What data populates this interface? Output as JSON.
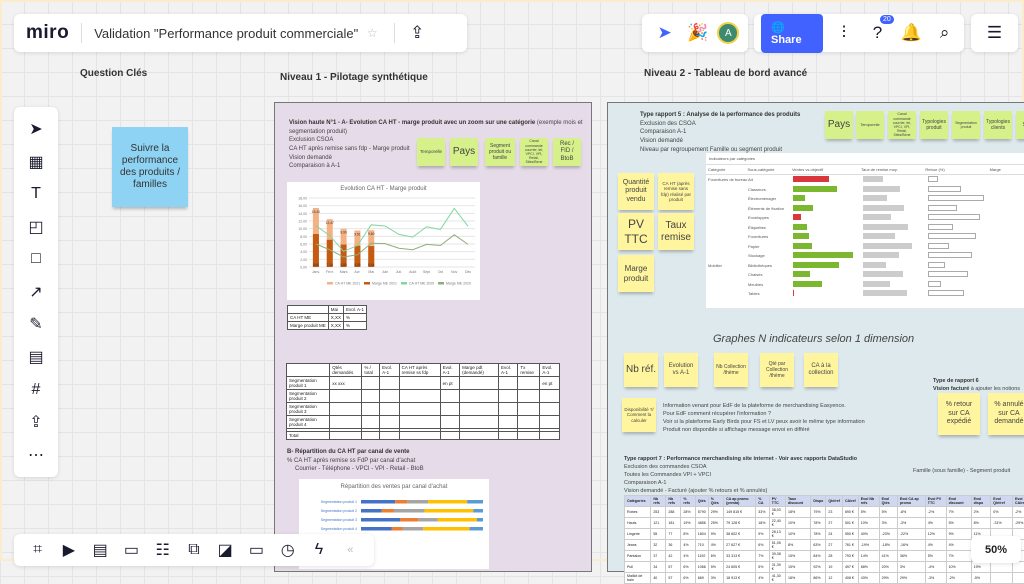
{
  "topbar": {
    "logo": "miro",
    "board_title": "Validation \"Performance produit commerciale\"",
    "star_icon": "star-icon",
    "export_icon": "upload-icon"
  },
  "collab": {
    "avatar_initial": "A",
    "share_label": "Share",
    "notification_count": "20"
  },
  "colors": {
    "share": "#4262ff",
    "frame1": "#e6dbe8",
    "frame2": "#dde9ec",
    "sticky_green": "#d6f08a",
    "sticky_yellow": "#fff59e",
    "sticky_blue": "#8fd3f4"
  },
  "sections": {
    "q": "Question Clés",
    "n1": "Niveau 1 - Pilotage synthétique",
    "n2": "Niveau 2 - Tableau de bord avancé"
  },
  "question_sticky": "Suivre la performance des produits / familles",
  "left_tools": [
    "select",
    "template",
    "text",
    "sticky-note",
    "shape",
    "arrow",
    "pen",
    "comment",
    "frame",
    "upload",
    "more"
  ],
  "bottom_tools": [
    "frames",
    "presentation",
    "comments",
    "card",
    "list",
    "share-screen",
    "embed",
    "video",
    "timer",
    "lightning"
  ],
  "n1": {
    "title": "Vision haute N°1 - A- Evolution CA HT - marge produit avec un zoom sur une catégorie",
    "title_suffix": "(exemple mois et segmentation produit)",
    "lines": [
      "Exclusion CSOA",
      "CA HT après remise sans fdp - Marge produit",
      "Vision demandé",
      "Comparaison à A-1"
    ],
    "stickies": [
      "Temporelle",
      "Pays",
      "Segment produit ou famille",
      "Canal commande courrier, tel, VPCI, VPI, Retail, Sites/Bene",
      "Rec / FID / BtoB"
    ],
    "small_table": {
      "header": [
        "",
        "Mai",
        "Evol. A-1"
      ],
      "rows": [
        [
          "CA HT ME",
          "X,XX",
          "%"
        ],
        [
          "Marge produit ME",
          "X,XX",
          "%"
        ]
      ]
    },
    "big_table": {
      "header": [
        "",
        "Qtés demandés",
        "% / total",
        "Evol. A-1",
        "CA HT après remise ss fdp",
        "Evol. A-1",
        "Marge pdt (demandé)",
        "Evol. A-1",
        "Tx remise",
        "Evol. A-1"
      ],
      "rows": [
        [
          "Segmentation produit 1",
          "xx xxx",
          "",
          "",
          "",
          "en pt",
          "",
          "",
          "",
          "en pt"
        ],
        [
          "Segmentation produit 2",
          "",
          "",
          "",
          "",
          "",
          "",
          "",
          "",
          ""
        ],
        [
          "Segmentation produit 3",
          "",
          "",
          "",
          "",
          "",
          "",
          "",
          "",
          ""
        ],
        [
          "Segmentation produit 4",
          "",
          "",
          "",
          "",
          "",
          "",
          "",
          "",
          ""
        ],
        [
          "",
          "",
          "",
          "",
          "",
          "",
          "",
          "",
          "",
          ""
        ],
        [
          "Total",
          "",
          "",
          "",
          "",
          "",
          "",
          "",
          "",
          ""
        ]
      ]
    },
    "b_title": "B- Répartition du CA HT par canal de vente",
    "b_lines": [
      "% CA HT après remise ss FdP par canal d'achat",
      "Courrier - Téléphone - VPCI - VPI - Retail - BtoB"
    ],
    "stack_chart": {
      "title": "Répartition des ventes par canal d'achat",
      "categories": [
        "Segmentation produit 1",
        "Segmentation produit 2",
        "Segmentation produit 3",
        "Segmentation produit 4"
      ],
      "colors": [
        "#4472c4",
        "#ed7d31",
        "#a5a5a5",
        "#ffc000",
        "#5b9bd5"
      ],
      "values": [
        [
          28,
          10,
          17,
          32,
          13
        ],
        [
          17,
          10,
          25,
          40,
          8
        ],
        [
          32,
          15,
          16,
          32,
          5
        ],
        [
          25,
          9,
          17,
          38,
          11
        ]
      ]
    }
  },
  "chart_data": {
    "type": "bar+line",
    "title": "Evolution CA HT - Marge produit",
    "categories": [
      "Janv.",
      "Févr.",
      "Mars",
      "Avr.",
      "Mai",
      "Juin",
      "Juil.",
      "Août",
      "Sept",
      "Oct",
      "Nov",
      "Déc"
    ],
    "ylim": [
      0,
      18
    ],
    "yticks": [
      "0,00",
      "2,00",
      "4,00",
      "6,00",
      "8,00",
      "10,00",
      "12,00",
      "14,00",
      "16,00",
      "18,00"
    ],
    "series": [
      {
        "name": "CA HT ME 2021",
        "type": "bar",
        "color": "#f4b183",
        "values": [
          15.4,
          12.47,
          9.99,
          9.51,
          9.6,
          null,
          null,
          null,
          null,
          null,
          null,
          null
        ],
        "labels": [
          "15,40",
          "12,47",
          "9,99",
          "9,51",
          "9,60"
        ]
      },
      {
        "name": "Marge ME 2021",
        "type": "bar",
        "color": "#c55a11",
        "values": [
          8.6,
          7.1,
          5.85,
          5.55,
          5.44,
          null,
          null,
          null,
          null,
          null,
          null,
          null
        ],
        "labels": [
          "8,60",
          "7,10",
          "5,85",
          "5,55",
          "5,44"
        ]
      },
      {
        "name": "CA HT ME 2020",
        "type": "line",
        "color": "#7fd6a0",
        "values": [
          10.8,
          8.2,
          4.1,
          5.6,
          11.0,
          10.7,
          8.5,
          7.8,
          10.5,
          9.8,
          15.3,
          10.6
        ]
      },
      {
        "name": "Marge ME 2020",
        "type": "line",
        "color": "#8fae7c",
        "values": [
          6.0,
          4.5,
          2.6,
          3.2,
          6.2,
          6.1,
          4.9,
          4.5,
          5.9,
          5.6,
          8.4,
          5.9
        ]
      }
    ],
    "legend": [
      "CA HT ME 2021",
      "Marge ME 2021",
      "CA HT ME 2020",
      "Marge ME 2020"
    ],
    "legend_position": "bottom"
  },
  "n2": {
    "r5_title": "Type rapport 5 : Analyse de la performance des produits",
    "r5_lines": [
      "Exclusion des CSOA",
      "Comparaison A-1",
      "Vision demandé",
      "Niveau par regroupement Famille ou segment produit"
    ],
    "r5_stickies": [
      "Pays",
      "Temporelle",
      "Canal commande courrier, tel, VPCI, VPI, Retail, Sites/Bene",
      "Typologies produit",
      "Segmentation produit",
      "Typologies clients",
      "Seg cli"
    ],
    "left_stickies": [
      "Quantité produit vendu",
      "CA HT (après remise sans fdp) réalisé par produit",
      "PV TTC",
      "Taux remise",
      "Marge produit"
    ],
    "dash": {
      "title": "Indicateurs par catégories",
      "cols": [
        "Catégorie",
        "Sous-catégorie",
        "Ventes vs objectif",
        "Taux de remise moy.",
        "Retour (%)",
        "Marge"
      ],
      "rows": [
        [
          "Fournitures de bureau",
          "Art",
          78,
          "red"
        ],
        [
          "",
          "Classeurs",
          95,
          "green"
        ],
        [
          "",
          "Électroménager",
          26,
          "green"
        ],
        [
          "",
          "Éléments de fixation",
          44,
          "green"
        ],
        [
          "",
          "Enveloppes",
          18,
          "red"
        ],
        [
          "",
          "Étiquettes",
          30,
          "green"
        ],
        [
          "",
          "Fournitures",
          35,
          "green"
        ],
        [
          "",
          "Papier",
          40,
          "green"
        ],
        [
          "",
          "Stockage",
          129,
          "green"
        ],
        [
          "Mobilier",
          "Bibliothèques",
          99,
          "green"
        ],
        [
          "",
          "Chaises",
          37,
          "green"
        ],
        [
          "",
          "Meubles",
          63,
          "green"
        ],
        [
          "",
          "Tables",
          3,
          "red"
        ]
      ]
    },
    "graphes_title": "Graphes N indicateurs selon 1 dimension",
    "g_stickies": [
      "Nb réf.",
      "Evolution vs A-1",
      "Nb Collection /thème",
      "Qté par Collection /thème",
      "CA à la collection"
    ],
    "dispo_sticky": "Disponibilité ?/ Comment la calculer",
    "dispo_lines": [
      "Information venant pour EdF de la plateforme de merchandising Easyence.",
      "Pour EdF comment récupérer l'information ?",
      "Voir si la plateforme Early Birds pour FS et LV peux avoir le même type information",
      "Produit non disponible si affichage message envoi en différé"
    ],
    "r6_title": "Type de rapport 6",
    "r6_sub_bold": "Vision facturé",
    "r6_sub": " à ajouter les notions",
    "r6_stickies": [
      "% retour sur CA expédié",
      "% annulé sur CA demandé"
    ],
    "r7_title": "Type rapport 7 : Performance merchandising site internet",
    "r7_suffix": "- Voir avec rapports DataStudio",
    "r7_lines": [
      "Exclusion des commandes CSOA",
      "Toutes les Commandes VPI + VPCI",
      "Comparaison A-1",
      "Vision demandé - Facturé (ajouter % retours et % annulés)"
    ],
    "r7_right": "Famille (sous famille) - Segment produit",
    "r7_table": {
      "header": [
        "Catégories",
        "Nb refs",
        "Nb refs",
        "% refs",
        "Qtés",
        "% Qtés",
        "CA ap promo (presta)",
        "% CA",
        "PV TTC",
        "Taux discount",
        "Dispo",
        "Qté/ref",
        "CA/ref",
        "Evol Nb refs",
        "Evol Qtés",
        "Evol CA ap promo",
        "Evol PV TTC",
        "Evol discount",
        "Evol dispo",
        "Evol Qté/ref",
        "Evol CA/ref"
      ],
      "rows": [
        [
          "Robes",
          "253",
          "288",
          "28%",
          "5790",
          "29%",
          "149 815 €",
          "33%",
          "38,03 €",
          "18%",
          "79%",
          "23",
          "690 €",
          "5%",
          "5%",
          "-8%",
          "-2%",
          "7%",
          "2%",
          "0%",
          "-2%"
        ],
        [
          "Hauts",
          "121",
          "181",
          "19%",
          "4856",
          "25%",
          "79 128 €",
          "18%",
          "22,40 €",
          "10%",
          "78%",
          "27",
          "501 €",
          "10%",
          "3%",
          "-3%",
          "4%",
          "5%",
          "8%",
          "-31%",
          "-29%"
        ],
        [
          "Lingerie",
          "55",
          "77",
          "8%",
          "1804",
          "9%",
          "38 602 €",
          "9%",
          "28,13 €",
          "10%",
          "78%",
          "24",
          "550 €",
          "40%",
          "-23%",
          "-22%",
          "12%",
          "9%",
          "11%",
          "",
          ""
        ],
        [
          "Jeans",
          "32",
          "36",
          "4%",
          "710",
          "4%",
          "27 627 €",
          "6%",
          "51,05 €",
          "8%",
          "63%",
          "27",
          "761 €",
          "-19%",
          "-18%",
          "-16%",
          "4%",
          "4%",
          "-8%",
          "",
          ""
        ],
        [
          "Pantalon",
          "37",
          "42",
          "4%",
          "1192",
          "6%",
          "33 313 €",
          "7%",
          "39,38 €",
          "15%",
          "84%",
          "28",
          "793 €",
          "14%",
          "41%",
          "36%",
          "5%",
          "7%",
          "9%",
          "",
          ""
        ],
        [
          "Pull",
          "34",
          "57",
          "6%",
          "1066",
          "5%",
          "24 605 €",
          "5%",
          "31,39 €",
          "15%",
          "92%",
          "19",
          "497 €",
          "68%",
          "20%",
          "3%",
          "-4%",
          "10%",
          "19%",
          "",
          ""
        ],
        [
          "Maillot de bain",
          "40",
          "57",
          "6%",
          "669",
          "3%",
          "18 913 €",
          "4%",
          "41,30 €",
          "18%",
          "86%",
          "12",
          "408 €",
          "43%",
          "29%",
          "29%",
          "-3%",
          "-2%",
          "-5%",
          "",
          ""
        ]
      ]
    },
    "zoom_level": "50%"
  }
}
